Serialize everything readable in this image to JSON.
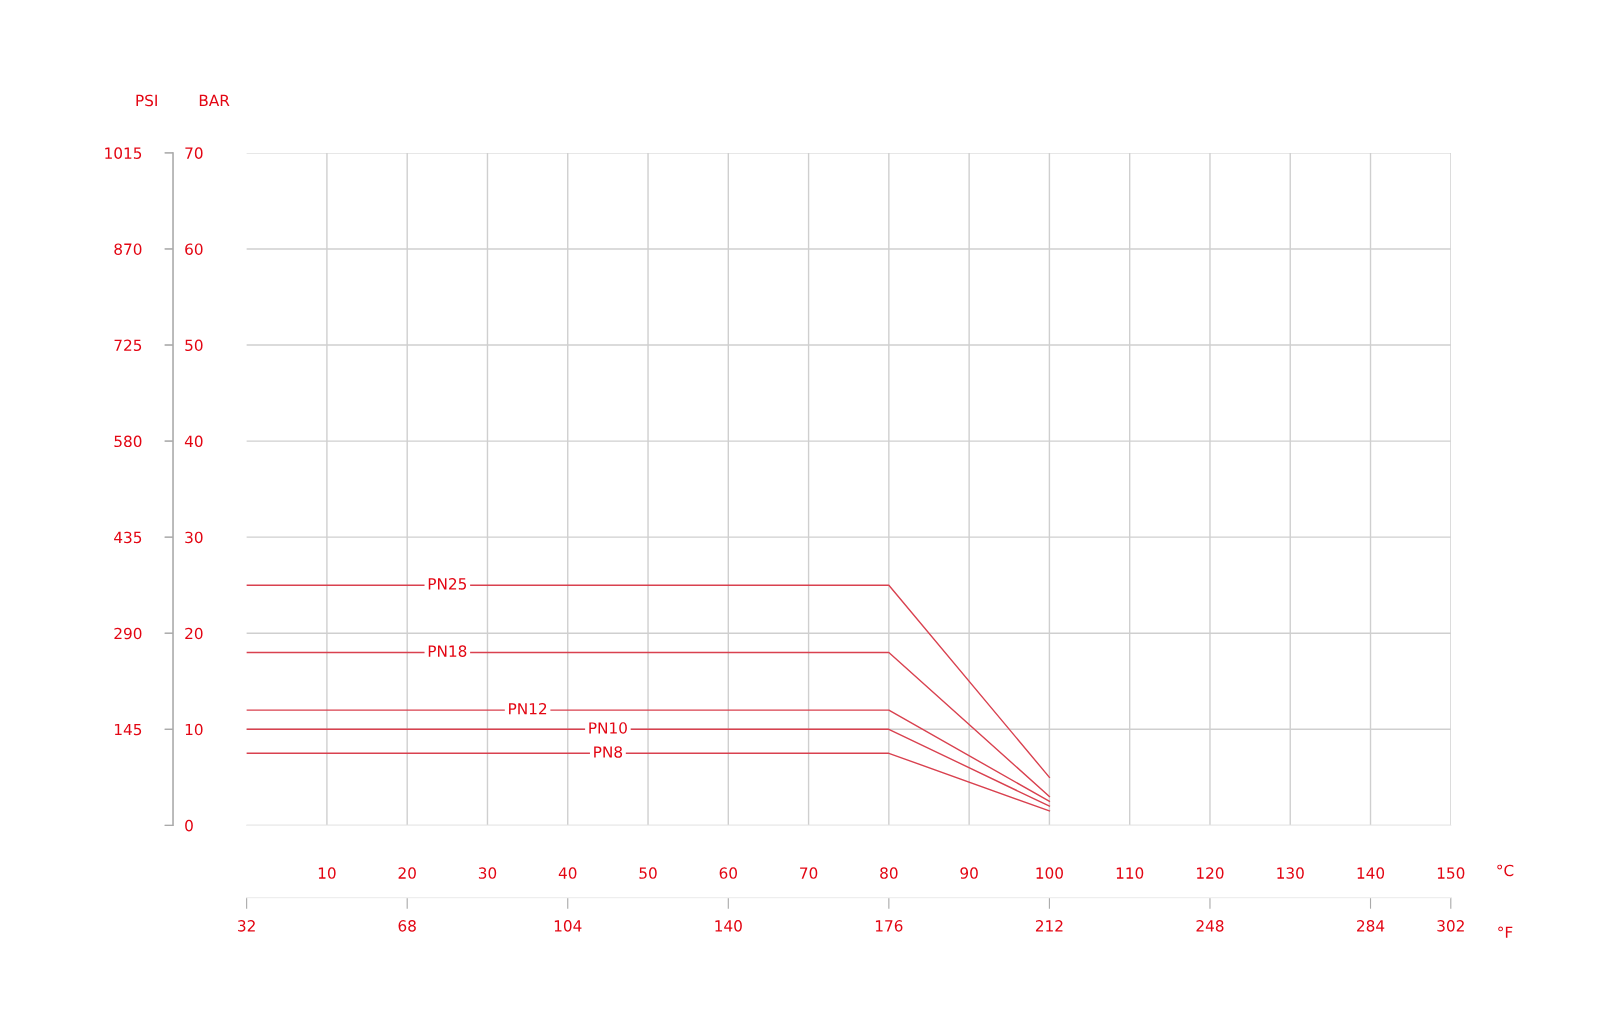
{
  "chart_data": {
    "type": "line",
    "xlabel": "°C",
    "x2label": "°F",
    "ylabel": "BAR",
    "y2label": "PSI",
    "x": [
      0,
      80,
      100
    ],
    "series": [
      {
        "name": "PN25",
        "color": "#d9414f",
        "values": [
          25,
          25,
          5
        ]
      },
      {
        "name": "PN18",
        "color": "#d9414f",
        "values": [
          18,
          18,
          3
        ]
      },
      {
        "name": "PN12",
        "color": "#d9414f",
        "values": [
          12,
          12,
          2.5
        ]
      },
      {
        "name": "PN10",
        "color": "#d9414f",
        "values": [
          10,
          10,
          2
        ]
      },
      {
        "name": "PN8",
        "color": "#d9414f",
        "values": [
          7.5,
          7.5,
          1.5
        ]
      }
    ],
    "xlim": [
      0,
      150
    ],
    "xticks": [
      10,
      20,
      30,
      40,
      50,
      60,
      70,
      80,
      90,
      100,
      110,
      120,
      130,
      140,
      150
    ],
    "x2lim": [
      32,
      302
    ],
    "x2ticks": [
      32,
      68,
      104,
      140,
      176,
      212,
      248,
      284,
      302
    ],
    "ylim": [
      0,
      70
    ],
    "yticks": [
      0,
      10,
      20,
      30,
      40,
      50,
      60,
      70
    ],
    "y2lim": [
      0,
      1015
    ],
    "y2ticks": [
      {
        "value": 0,
        "label": null
      },
      145,
      290,
      435,
      580,
      725,
      870,
      1015
    ],
    "grid": true,
    "legend": false,
    "marker": "none",
    "line_style": "solid"
  }
}
